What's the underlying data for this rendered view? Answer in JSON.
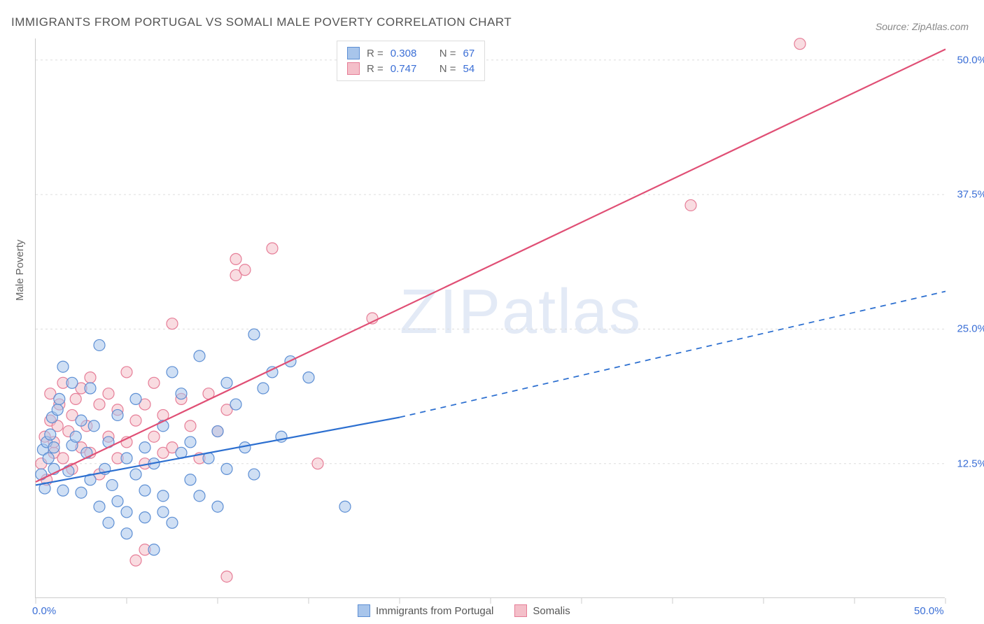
{
  "title": "IMMIGRANTS FROM PORTUGAL VS SOMALI MALE POVERTY CORRELATION CHART",
  "source": "Source: ZipAtlas.com",
  "watermark": "ZIPatlas",
  "y_axis_label": "Male Poverty",
  "chart": {
    "type": "scatter",
    "background_color": "#ffffff",
    "grid_color": "#dddddd",
    "axis_color": "#cccccc",
    "xlim": [
      0,
      50
    ],
    "ylim": [
      0,
      52
    ],
    "x_ticks_major": [
      0,
      50
    ],
    "x_ticks_minor": [
      0,
      5,
      10,
      15,
      20,
      25,
      30,
      35,
      40,
      45,
      50
    ],
    "y_ticks": [
      12.5,
      25.0,
      37.5,
      50.0
    ],
    "x_tick_labels": [
      "0.0%",
      "50.0%"
    ],
    "y_tick_labels": [
      "12.5%",
      "25.0%",
      "37.5%",
      "50.0%"
    ],
    "marker_radius": 8,
    "marker_opacity": 0.55,
    "series": [
      {
        "name": "Immigrants from Portugal",
        "color_fill": "#a8c5eb",
        "color_stroke": "#5d8fd4",
        "R": "0.308",
        "N": "67",
        "trend": {
          "x1": 0,
          "y1": 10.5,
          "x2_solid": 20,
          "y2_solid": 16.8,
          "x2": 50,
          "y2": 28.5,
          "stroke": "#2c6fd0",
          "width": 2.2
        },
        "points": [
          [
            0.3,
            11.5
          ],
          [
            0.4,
            13.8
          ],
          [
            0.5,
            10.2
          ],
          [
            0.6,
            14.5
          ],
          [
            0.7,
            13.0
          ],
          [
            0.8,
            15.2
          ],
          [
            0.9,
            16.8
          ],
          [
            1.0,
            12.0
          ],
          [
            1.0,
            14.0
          ],
          [
            1.2,
            17.5
          ],
          [
            1.3,
            18.5
          ],
          [
            1.5,
            10.0
          ],
          [
            1.5,
            21.5
          ],
          [
            1.8,
            11.8
          ],
          [
            2.0,
            14.2
          ],
          [
            2.0,
            20.0
          ],
          [
            2.2,
            15.0
          ],
          [
            2.5,
            16.5
          ],
          [
            2.5,
            9.8
          ],
          [
            2.8,
            13.5
          ],
          [
            3.0,
            11.0
          ],
          [
            3.0,
            19.5
          ],
          [
            3.2,
            16.0
          ],
          [
            3.5,
            8.5
          ],
          [
            3.5,
            23.5
          ],
          [
            3.8,
            12.0
          ],
          [
            4.0,
            7.0
          ],
          [
            4.0,
            14.5
          ],
          [
            4.2,
            10.5
          ],
          [
            4.5,
            9.0
          ],
          [
            4.5,
            17.0
          ],
          [
            5.0,
            8.0
          ],
          [
            5.0,
            13.0
          ],
          [
            5.0,
            6.0
          ],
          [
            5.5,
            11.5
          ],
          [
            5.5,
            18.5
          ],
          [
            6.0,
            7.5
          ],
          [
            6.0,
            10.0
          ],
          [
            6.0,
            14.0
          ],
          [
            6.5,
            12.5
          ],
          [
            6.5,
            4.5
          ],
          [
            7.0,
            8.0
          ],
          [
            7.0,
            9.5
          ],
          [
            7.0,
            16.0
          ],
          [
            7.5,
            7.0
          ],
          [
            7.5,
            21.0
          ],
          [
            8.0,
            13.5
          ],
          [
            8.0,
            19.0
          ],
          [
            8.5,
            11.0
          ],
          [
            8.5,
            14.5
          ],
          [
            9.0,
            9.5
          ],
          [
            9.0,
            22.5
          ],
          [
            9.5,
            13.0
          ],
          [
            10.0,
            8.5
          ],
          [
            10.0,
            15.5
          ],
          [
            10.5,
            12.0
          ],
          [
            10.5,
            20.0
          ],
          [
            11.0,
            18.0
          ],
          [
            11.5,
            14.0
          ],
          [
            12.0,
            24.5
          ],
          [
            12.0,
            11.5
          ],
          [
            12.5,
            19.5
          ],
          [
            13.0,
            21.0
          ],
          [
            13.5,
            15.0
          ],
          [
            14.0,
            22.0
          ],
          [
            15.0,
            20.5
          ],
          [
            17.0,
            8.5
          ]
        ]
      },
      {
        "name": "Somalis",
        "color_fill": "#f4bfc9",
        "color_stroke": "#e67d97",
        "R": "0.747",
        "N": "54",
        "trend": {
          "x1": 0,
          "y1": 10.8,
          "x2_solid": 50,
          "y2_solid": 51.0,
          "x2": 50,
          "y2": 51.0,
          "stroke": "#e04f75",
          "width": 2.2
        },
        "points": [
          [
            0.3,
            12.5
          ],
          [
            0.5,
            15.0
          ],
          [
            0.6,
            11.0
          ],
          [
            0.8,
            16.5
          ],
          [
            0.8,
            19.0
          ],
          [
            1.0,
            13.5
          ],
          [
            1.0,
            14.5
          ],
          [
            1.2,
            16.0
          ],
          [
            1.3,
            18.0
          ],
          [
            1.5,
            20.0
          ],
          [
            1.5,
            13.0
          ],
          [
            1.8,
            15.5
          ],
          [
            2.0,
            17.0
          ],
          [
            2.0,
            12.0
          ],
          [
            2.2,
            18.5
          ],
          [
            2.5,
            14.0
          ],
          [
            2.5,
            19.5
          ],
          [
            2.8,
            16.0
          ],
          [
            3.0,
            13.5
          ],
          [
            3.0,
            20.5
          ],
          [
            3.5,
            18.0
          ],
          [
            3.5,
            11.5
          ],
          [
            4.0,
            15.0
          ],
          [
            4.0,
            19.0
          ],
          [
            4.5,
            13.0
          ],
          [
            4.5,
            17.5
          ],
          [
            5.0,
            14.5
          ],
          [
            5.0,
            21.0
          ],
          [
            5.5,
            16.5
          ],
          [
            5.5,
            3.5
          ],
          [
            6.0,
            12.5
          ],
          [
            6.0,
            18.0
          ],
          [
            6.5,
            15.0
          ],
          [
            6.5,
            20.0
          ],
          [
            7.0,
            13.5
          ],
          [
            7.0,
            17.0
          ],
          [
            7.5,
            25.5
          ],
          [
            7.5,
            14.0
          ],
          [
            8.0,
            18.5
          ],
          [
            8.5,
            16.0
          ],
          [
            9.0,
            13.0
          ],
          [
            9.5,
            19.0
          ],
          [
            10.0,
            15.5
          ],
          [
            10.5,
            17.5
          ],
          [
            10.5,
            2.0
          ],
          [
            11.0,
            30.0
          ],
          [
            11.0,
            31.5
          ],
          [
            11.5,
            30.5
          ],
          [
            13.0,
            32.5
          ],
          [
            15.5,
            12.5
          ],
          [
            18.5,
            26.0
          ],
          [
            36.0,
            36.5
          ],
          [
            42.0,
            51.5
          ],
          [
            6.0,
            4.5
          ]
        ]
      }
    ]
  },
  "legend_top": {
    "r_label": "R =",
    "n_label": "N ="
  },
  "colors": {
    "tick_label": "#3b6fd6",
    "axis_text": "#666666",
    "title_text": "#555555"
  }
}
